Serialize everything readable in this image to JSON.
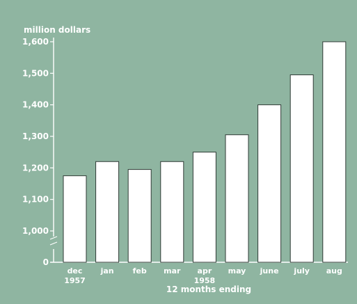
{
  "chart_data": {
    "type": "bar",
    "ylabel": "million dollars",
    "xlabel": "12 months ending",
    "categories": [
      "dec",
      "jan",
      "feb",
      "mar",
      "apr",
      "may",
      "june",
      "july",
      "aug"
    ],
    "year_labels": [
      {
        "label": "1957",
        "category": "dec"
      },
      {
        "label": "1958",
        "category": "apr"
      }
    ],
    "values": [
      1175,
      1220,
      1195,
      1220,
      1250,
      1305,
      1400,
      1495,
      1600
    ],
    "ylim": [
      1000,
      1600
    ],
    "yticks": [
      {
        "value": 1000,
        "label": "1,000"
      },
      {
        "value": 1100,
        "label": "1,100"
      },
      {
        "value": 1200,
        "label": "1,200"
      },
      {
        "value": 1300,
        "label": "1,300"
      },
      {
        "value": 1400,
        "label": "1,400"
      },
      {
        "value": 1500,
        "label": "1,500"
      },
      {
        "value": 1600,
        "label": "1,600"
      }
    ],
    "zero_tick_label": "0",
    "axis_break": true,
    "grid": false,
    "colors": {
      "background": "#8fb5a1",
      "bar_fill": "#ffffff",
      "bar_stroke": "#2f3a35",
      "axis": "#ffffff",
      "text": "#ffffff"
    }
  }
}
